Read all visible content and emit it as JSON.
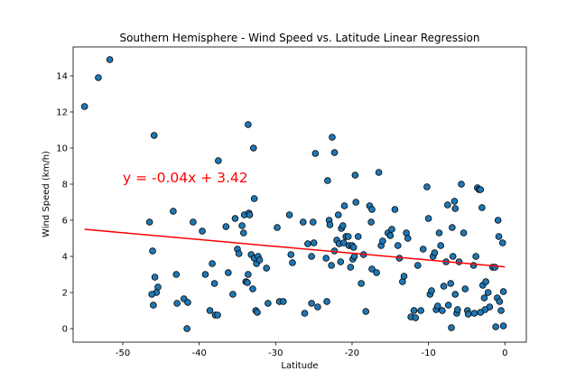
{
  "chart_data": {
    "type": "scatter",
    "title": "Southern Hemisphere - Wind Speed vs. Latitude Linear Regression",
    "xlabel": "Latitude",
    "ylabel": "Wind Speed (km/h)",
    "xlim": [
      -56.5,
      2.8
    ],
    "ylim": [
      -0.75,
      15.6
    ],
    "xticks": [
      -50,
      -40,
      -30,
      -20,
      -10,
      0
    ],
    "yticks": [
      0,
      2,
      4,
      6,
      8,
      10,
      12,
      14
    ],
    "grid": false,
    "regression": {
      "equation": "y = -0.04x + 3.42",
      "x_range": [
        -55.0,
        0.0
      ],
      "y_values": [
        5.5,
        3.42
      ],
      "color": "#ff0000",
      "label_x": -50,
      "label_y": 8.1
    },
    "marker_color": "#1f77b4",
    "marker_edge": "#000000",
    "points": [
      [
        -55.0,
        12.3
      ],
      [
        -53.2,
        13.9
      ],
      [
        -51.7,
        14.9
      ],
      [
        -46.5,
        5.9
      ],
      [
        -46.1,
        4.3
      ],
      [
        -45.9,
        10.7
      ],
      [
        -45.8,
        2.85
      ],
      [
        -45.4,
        2.3
      ],
      [
        -45.6,
        2.0
      ],
      [
        -46.2,
        1.9
      ],
      [
        -46.0,
        1.3
      ],
      [
        -43.4,
        6.5
      ],
      [
        -43.0,
        3.0
      ],
      [
        -42.9,
        1.4
      ],
      [
        -42.0,
        1.65
      ],
      [
        -41.5,
        1.45
      ],
      [
        -41.6,
        0.0
      ],
      [
        -40.8,
        5.9
      ],
      [
        -39.6,
        5.4
      ],
      [
        -39.2,
        3.0
      ],
      [
        -38.6,
        1.0
      ],
      [
        -38.3,
        3.6
      ],
      [
        -38.0,
        2.5
      ],
      [
        -37.9,
        0.75
      ],
      [
        -37.6,
        0.75
      ],
      [
        -37.5,
        9.3
      ],
      [
        -36.5,
        5.65
      ],
      [
        -36.2,
        3.1
      ],
      [
        -35.6,
        1.9
      ],
      [
        -35.3,
        6.1
      ],
      [
        -35.0,
        4.4
      ],
      [
        -34.8,
        4.15
      ],
      [
        -34.4,
        5.7
      ],
      [
        -34.2,
        5.3
      ],
      [
        -34.1,
        6.3
      ],
      [
        -33.9,
        2.6
      ],
      [
        -33.7,
        2.55
      ],
      [
        -33.6,
        11.3
      ],
      [
        -33.5,
        6.4
      ],
      [
        -33.6,
        3.0
      ],
      [
        -33.4,
        6.3
      ],
      [
        -33.2,
        4.1
      ],
      [
        -33.0,
        2.2
      ],
      [
        -32.8,
        3.9
      ],
      [
        -32.5,
        3.6
      ],
      [
        -32.9,
        10.0
      ],
      [
        -32.8,
        7.2
      ],
      [
        -32.3,
        4.0
      ],
      [
        -32.1,
        3.8
      ],
      [
        -32.6,
        1.0
      ],
      [
        -32.4,
        0.9
      ],
      [
        -31.2,
        3.35
      ],
      [
        -31.0,
        1.4
      ],
      [
        -29.8,
        5.6
      ],
      [
        -29.5,
        1.5
      ],
      [
        -29.0,
        1.5
      ],
      [
        -28.2,
        6.3
      ],
      [
        -28.0,
        4.1
      ],
      [
        -27.8,
        3.65
      ],
      [
        -26.4,
        5.9
      ],
      [
        -26.2,
        0.85
      ],
      [
        -25.8,
        4.7
      ],
      [
        -25.3,
        4.0
      ],
      [
        -25.1,
        5.9
      ],
      [
        -25.0,
        4.75
      ],
      [
        -24.8,
        9.7
      ],
      [
        -24.5,
        1.2
      ],
      [
        -25.3,
        1.4
      ],
      [
        -23.4,
        3.9
      ],
      [
        -23.3,
        1.5
      ],
      [
        -23.2,
        8.2
      ],
      [
        -23.0,
        6.0
      ],
      [
        -22.9,
        5.75
      ],
      [
        -22.7,
        3.5
      ],
      [
        -22.6,
        10.6
      ],
      [
        -22.3,
        9.75
      ],
      [
        -22.0,
        4.9
      ],
      [
        -21.8,
        6.3
      ],
      [
        -21.7,
        4.7
      ],
      [
        -21.5,
        3.7
      ],
      [
        -21.4,
        5.55
      ],
      [
        -21.2,
        5.7
      ],
      [
        -21.1,
        4.75
      ],
      [
        -21.0,
        6.8
      ],
      [
        -20.8,
        5.1
      ],
      [
        -20.5,
        5.1
      ],
      [
        -20.4,
        4.6
      ],
      [
        -20.2,
        3.4
      ],
      [
        -20.0,
        4.6
      ],
      [
        -19.9,
        3.85
      ],
      [
        -19.8,
        4.5
      ],
      [
        -19.7,
        4.0
      ],
      [
        -19.6,
        8.5
      ],
      [
        -19.5,
        7.0
      ],
      [
        -19.2,
        5.1
      ],
      [
        -18.8,
        2.5
      ],
      [
        -18.5,
        4.1
      ],
      [
        -18.2,
        0.95
      ],
      [
        -17.7,
        6.8
      ],
      [
        -17.5,
        5.9
      ],
      [
        -17.4,
        3.3
      ],
      [
        -16.8,
        3.1
      ],
      [
        -16.5,
        8.65
      ],
      [
        -16.2,
        4.6
      ],
      [
        -16.0,
        4.85
      ],
      [
        -15.3,
        5.3
      ],
      [
        -15.0,
        5.15
      ],
      [
        -14.8,
        5.5
      ],
      [
        -14.4,
        6.6
      ],
      [
        -14.0,
        4.6
      ],
      [
        -13.8,
        3.9
      ],
      [
        -13.4,
        2.6
      ],
      [
        -13.2,
        2.9
      ],
      [
        -12.9,
        5.3
      ],
      [
        -12.7,
        5.0
      ],
      [
        -12.3,
        0.65
      ],
      [
        -11.9,
        1.0
      ],
      [
        -11.7,
        0.6
      ],
      [
        -11.4,
        3.5
      ],
      [
        -10.7,
        4.4
      ],
      [
        -10.2,
        7.85
      ],
      [
        -10.0,
        6.1
      ],
      [
        -9.8,
        1.9
      ],
      [
        -9.4,
        4.0
      ],
      [
        -9.2,
        4.2
      ],
      [
        -9.0,
        1.05
      ],
      [
        -8.8,
        1.25
      ],
      [
        -8.6,
        5.3
      ],
      [
        -8.4,
        4.6
      ],
      [
        -8.0,
        2.35
      ],
      [
        -7.7,
        3.7
      ],
      [
        -7.5,
        6.85
      ],
      [
        -7.1,
        2.5
      ],
      [
        -7.0,
        0.05
      ],
      [
        -6.9,
        5.6
      ],
      [
        -6.8,
        4.0
      ],
      [
        -6.6,
        7.05
      ],
      [
        -6.5,
        6.65
      ],
      [
        -6.3,
        0.85
      ],
      [
        -6.2,
        1.05
      ],
      [
        -6.5,
        1.9
      ],
      [
        -5.7,
        8.0
      ],
      [
        -5.4,
        5.3
      ],
      [
        -5.2,
        2.2
      ],
      [
        -4.9,
        1.0
      ],
      [
        -4.8,
        0.8
      ],
      [
        -4.1,
        3.5
      ],
      [
        -3.8,
        4.0
      ],
      [
        -3.6,
        7.8
      ],
      [
        -3.4,
        7.7
      ],
      [
        -3.2,
        7.7
      ],
      [
        -3.0,
        6.7
      ],
      [
        -2.9,
        2.4
      ],
      [
        -2.7,
        1.7
      ],
      [
        -2.5,
        2.6
      ],
      [
        -2.2,
        2.0
      ],
      [
        -2.0,
        1.2
      ],
      [
        -1.6,
        3.4
      ],
      [
        -1.3,
        3.4
      ],
      [
        -1.2,
        0.1
      ],
      [
        -1.0,
        1.7
      ],
      [
        -0.9,
        6.0
      ],
      [
        -0.8,
        5.1
      ],
      [
        -0.7,
        1.5
      ],
      [
        -0.5,
        1.0
      ],
      [
        -0.3,
        4.75
      ],
      [
        -0.2,
        0.15
      ],
      [
        -0.2,
        2.05
      ],
      [
        -2.6,
        1.05
      ],
      [
        -4.0,
        0.85
      ],
      [
        -3.2,
        0.9
      ],
      [
        -6.0,
        3.7
      ],
      [
        -8.2,
        1.0
      ],
      [
        -7.4,
        1.3
      ],
      [
        -9.6,
        2.1
      ],
      [
        -11.0,
        1.0
      ],
      [
        -17.4,
        6.6
      ],
      [
        -22.3,
        4.3
      ]
    ]
  }
}
